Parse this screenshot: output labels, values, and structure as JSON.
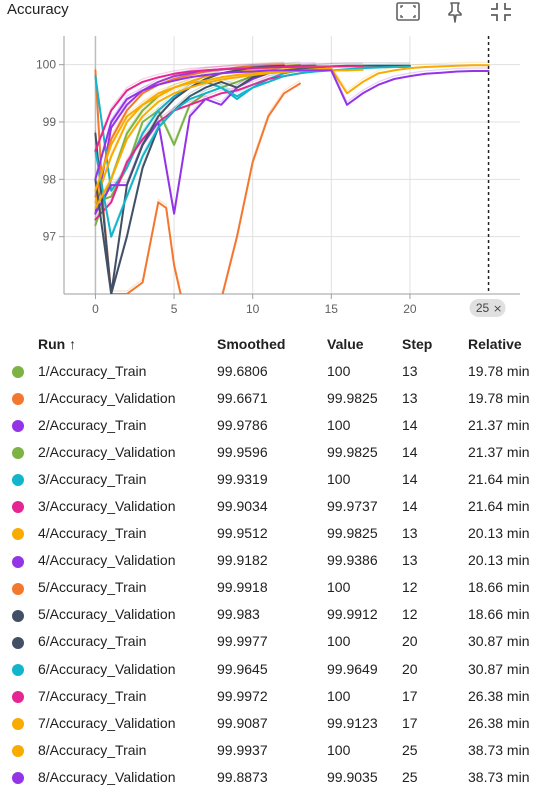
{
  "header": {
    "title": "Accuracy",
    "icons": [
      "fit-domain-icon",
      "pin-icon",
      "collapse-icon"
    ]
  },
  "chart_data": {
    "type": "line",
    "title": "Accuracy",
    "xlabel": "",
    "ylabel": "",
    "xlim": [
      -2,
      27
    ],
    "ylim": [
      96,
      100.5
    ],
    "x_ticks": [
      0,
      5,
      10,
      15,
      20
    ],
    "y_ticks": [
      97,
      98,
      99,
      100
    ],
    "x_tick_labels": [
      "0",
      "5",
      "10",
      "15",
      "20"
    ],
    "y_tick_labels": [
      "97",
      "98",
      "99",
      "100"
    ],
    "cursor_x": 25,
    "cursor_label": "25",
    "cursor_close": "×",
    "grid": true,
    "series": [
      {
        "name": "1/Accuracy_Train",
        "color": "#7cb342",
        "x": [
          0,
          1,
          2,
          3,
          4,
          5,
          6,
          7,
          8,
          9,
          10,
          11,
          12,
          13
        ],
        "y": [
          97.2,
          98.0,
          98.8,
          99.2,
          99.45,
          99.6,
          99.7,
          99.8,
          99.85,
          99.9,
          99.92,
          99.95,
          99.97,
          100.0
        ]
      },
      {
        "name": "1/Accuracy_Validation",
        "color": "#f4772e",
        "x": [
          0,
          0.5,
          1,
          2,
          3,
          4,
          4.5,
          5,
          5.5,
          7,
          8,
          9,
          10,
          11,
          12,
          13
        ],
        "y": [
          99.9,
          97.5,
          96.0,
          96.0,
          96.2,
          97.6,
          97.5,
          96.5,
          95.9,
          95.8,
          95.9,
          97.0,
          98.3,
          99.1,
          99.5,
          99.67
        ]
      },
      {
        "name": "2/Accuracy_Train",
        "color": "#9334e6",
        "x": [
          0,
          1,
          2,
          3,
          4,
          5,
          6,
          7,
          8,
          9,
          10,
          11,
          12,
          13,
          14
        ],
        "y": [
          97.4,
          98.9,
          99.3,
          99.55,
          99.7,
          99.8,
          99.85,
          99.9,
          99.92,
          99.94,
          99.95,
          99.96,
          99.97,
          99.98,
          99.98
        ]
      },
      {
        "name": "2/Accuracy_Validation",
        "color": "#7cb342",
        "x": [
          0,
          1,
          2,
          3,
          4,
          5,
          6,
          7,
          8,
          9,
          10,
          11,
          12,
          13,
          14
        ],
        "y": [
          97.6,
          97.7,
          98.2,
          99.0,
          99.2,
          98.6,
          99.3,
          99.5,
          99.6,
          99.7,
          99.8,
          99.85,
          99.9,
          99.93,
          99.96
        ]
      },
      {
        "name": "3/Accuracy_Train",
        "color": "#12b5cb",
        "x": [
          0,
          1,
          2,
          3,
          4,
          5,
          6,
          7,
          8,
          9,
          10,
          11,
          12,
          13,
          14
        ],
        "y": [
          99.8,
          97.8,
          98.2,
          98.8,
          99.2,
          99.45,
          99.6,
          99.7,
          99.6,
          99.4,
          99.6,
          99.75,
          99.85,
          99.9,
          99.93
        ]
      },
      {
        "name": "3/Accuracy_Validation",
        "color": "#e52592",
        "x": [
          0,
          1,
          2,
          3,
          4,
          5,
          6,
          7,
          8,
          9,
          10,
          11,
          12,
          13,
          14
        ],
        "y": [
          97.3,
          97.6,
          98.3,
          98.7,
          99.0,
          99.2,
          99.3,
          99.4,
          99.5,
          99.55,
          99.65,
          99.75,
          99.8,
          99.85,
          99.9
        ]
      },
      {
        "name": "4/Accuracy_Train",
        "color": "#f9ab00",
        "x": [
          0,
          1,
          2,
          3,
          4,
          5,
          6,
          7,
          8,
          9,
          10,
          11,
          12,
          13
        ],
        "y": [
          97.6,
          98.4,
          99.0,
          99.3,
          99.45,
          99.6,
          99.7,
          99.8,
          99.85,
          99.9,
          99.92,
          99.94,
          99.95,
          99.95
        ]
      },
      {
        "name": "4/Accuracy_Validation",
        "color": "#9334e6",
        "x": [
          0,
          1,
          2,
          3,
          4,
          5,
          6,
          7,
          8,
          9,
          10,
          11,
          12,
          13
        ],
        "y": [
          97.4,
          97.9,
          97.9,
          98.6,
          99.0,
          97.4,
          99.1,
          99.4,
          99.3,
          99.6,
          99.75,
          99.85,
          99.9,
          99.92
        ]
      },
      {
        "name": "5/Accuracy_Train",
        "color": "#f4772e",
        "x": [
          0,
          1,
          2,
          3,
          4,
          5,
          6,
          7,
          8,
          9,
          10,
          11,
          12
        ],
        "y": [
          97.7,
          98.7,
          99.2,
          99.5,
          99.65,
          99.75,
          99.82,
          99.88,
          99.92,
          99.95,
          99.97,
          99.98,
          99.99
        ]
      },
      {
        "name": "5/Accuracy_Validation",
        "color": "#425066",
        "x": [
          0,
          1,
          2,
          3,
          4,
          5,
          6,
          7,
          8,
          9,
          10,
          11,
          12
        ],
        "y": [
          98.8,
          96.0,
          97.9,
          98.6,
          99.1,
          99.4,
          99.6,
          99.75,
          99.85,
          99.9,
          99.95,
          99.97,
          99.98
        ]
      },
      {
        "name": "6/Accuracy_Train",
        "color": "#425066",
        "x": [
          0,
          1,
          2,
          3,
          4,
          5,
          6,
          7,
          8,
          9,
          10,
          11,
          12,
          13,
          14,
          15,
          16,
          17,
          18,
          19,
          20
        ],
        "y": [
          98.0,
          96.0,
          97.0,
          98.2,
          98.9,
          99.2,
          99.45,
          99.6,
          99.7,
          99.6,
          99.78,
          99.85,
          99.9,
          99.93,
          99.95,
          99.97,
          99.98,
          99.98,
          99.98,
          99.98,
          99.98
        ]
      },
      {
        "name": "6/Accuracy_Validation",
        "color": "#12b5cb",
        "x": [
          0,
          1,
          2,
          3,
          4,
          5,
          6,
          7,
          8,
          9,
          10,
          11,
          12,
          13,
          14,
          15,
          16,
          17,
          18,
          19,
          20
        ],
        "y": [
          98.5,
          97.0,
          97.7,
          98.4,
          98.9,
          99.2,
          99.4,
          99.5,
          99.6,
          99.45,
          99.6,
          99.7,
          99.8,
          99.85,
          99.88,
          99.9,
          99.92,
          99.94,
          99.95,
          99.96,
          99.96
        ]
      },
      {
        "name": "7/Accuracy_Train",
        "color": "#e52592",
        "x": [
          0,
          1,
          2,
          3,
          4,
          5,
          6,
          7,
          8,
          9,
          10,
          11,
          12,
          13,
          14,
          15,
          16,
          17
        ],
        "y": [
          98.5,
          99.2,
          99.55,
          99.7,
          99.78,
          99.84,
          99.88,
          99.9,
          99.92,
          99.93,
          99.94,
          99.95,
          99.96,
          99.96,
          99.97,
          99.97,
          99.97,
          99.97
        ]
      },
      {
        "name": "7/Accuracy_Validation",
        "color": "#f9ab00",
        "x": [
          0,
          1,
          2,
          3,
          4,
          5,
          6,
          7,
          8,
          9,
          10,
          11,
          12,
          13,
          14,
          15,
          16,
          17
        ],
        "y": [
          97.8,
          98.6,
          99.1,
          99.3,
          99.5,
          99.6,
          99.68,
          99.72,
          99.78,
          99.82,
          99.85,
          99.87,
          99.88,
          99.89,
          99.9,
          99.9,
          99.9,
          99.91
        ]
      },
      {
        "name": "8/Accuracy_Train",
        "color": "#f9ab00",
        "x": [
          0,
          1,
          2,
          3,
          4,
          5,
          6,
          7,
          8,
          9,
          10,
          11,
          12,
          13,
          14,
          15,
          16,
          17,
          18,
          19,
          20,
          21,
          22,
          23,
          24,
          25
        ],
        "y": [
          97.5,
          98.0,
          98.7,
          99.1,
          99.35,
          99.5,
          99.6,
          99.68,
          99.74,
          99.78,
          99.82,
          99.85,
          99.87,
          99.9,
          99.92,
          99.93,
          99.5,
          99.7,
          99.85,
          99.9,
          99.94,
          99.96,
          99.97,
          99.98,
          99.99,
          99.99
        ]
      },
      {
        "name": "8/Accuracy_Validation",
        "color": "#9334e6",
        "x": [
          0,
          1,
          2,
          3,
          4,
          5,
          6,
          7,
          8,
          9,
          10,
          11,
          12,
          13,
          14,
          15,
          16,
          17,
          18,
          19,
          20,
          21,
          22,
          23,
          24,
          25
        ],
        "y": [
          98.0,
          99.0,
          99.4,
          99.55,
          99.65,
          99.72,
          99.78,
          99.82,
          99.85,
          99.87,
          99.88,
          99.9,
          99.9,
          99.9,
          99.9,
          99.9,
          99.3,
          99.5,
          99.65,
          99.75,
          99.8,
          99.84,
          99.86,
          99.88,
          99.89,
          99.89
        ]
      }
    ]
  },
  "table": {
    "headers": {
      "run": "Run",
      "sort_arrow": "↑",
      "smoothed": "Smoothed",
      "value": "Value",
      "step": "Step",
      "relative": "Relative"
    },
    "rows": [
      {
        "color": "#7cb342",
        "run": "1/Accuracy_Train",
        "smoothed": "99.6806",
        "value": "100",
        "step": "13",
        "relative": "19.78 min"
      },
      {
        "color": "#f4772e",
        "run": "1/Accuracy_Validation",
        "smoothed": "99.6671",
        "value": "99.9825",
        "step": "13",
        "relative": "19.78 min"
      },
      {
        "color": "#9334e6",
        "run": "2/Accuracy_Train",
        "smoothed": "99.9786",
        "value": "100",
        "step": "14",
        "relative": "21.37 min"
      },
      {
        "color": "#7cb342",
        "run": "2/Accuracy_Validation",
        "smoothed": "99.9596",
        "value": "99.9825",
        "step": "14",
        "relative": "21.37 min"
      },
      {
        "color": "#12b5cb",
        "run": "3/Accuracy_Train",
        "smoothed": "99.9319",
        "value": "100",
        "step": "14",
        "relative": "21.64 min"
      },
      {
        "color": "#e52592",
        "run": "3/Accuracy_Validation",
        "smoothed": "99.9034",
        "value": "99.9737",
        "step": "14",
        "relative": "21.64 min"
      },
      {
        "color": "#f9ab00",
        "run": "4/Accuracy_Train",
        "smoothed": "99.9512",
        "value": "99.9825",
        "step": "13",
        "relative": "20.13 min"
      },
      {
        "color": "#9334e6",
        "run": "4/Accuracy_Validation",
        "smoothed": "99.9182",
        "value": "99.9386",
        "step": "13",
        "relative": "20.13 min"
      },
      {
        "color": "#f4772e",
        "run": "5/Accuracy_Train",
        "smoothed": "99.9918",
        "value": "100",
        "step": "12",
        "relative": "18.66 min"
      },
      {
        "color": "#425066",
        "run": "5/Accuracy_Validation",
        "smoothed": "99.983",
        "value": "99.9912",
        "step": "12",
        "relative": "18.66 min"
      },
      {
        "color": "#425066",
        "run": "6/Accuracy_Train",
        "smoothed": "99.9977",
        "value": "100",
        "step": "20",
        "relative": "30.87 min"
      },
      {
        "color": "#12b5cb",
        "run": "6/Accuracy_Validation",
        "smoothed": "99.9645",
        "value": "99.9649",
        "step": "20",
        "relative": "30.87 min"
      },
      {
        "color": "#e52592",
        "run": "7/Accuracy_Train",
        "smoothed": "99.9972",
        "value": "100",
        "step": "17",
        "relative": "26.38 min"
      },
      {
        "color": "#f9ab00",
        "run": "7/Accuracy_Validation",
        "smoothed": "99.9087",
        "value": "99.9123",
        "step": "17",
        "relative": "26.38 min"
      },
      {
        "color": "#f9ab00",
        "run": "8/Accuracy_Train",
        "smoothed": "99.9937",
        "value": "100",
        "step": "25",
        "relative": "38.73 min"
      },
      {
        "color": "#9334e6",
        "run": "8/Accuracy_Validation",
        "smoothed": "99.8873",
        "value": "99.9035",
        "step": "25",
        "relative": "38.73 min"
      }
    ]
  }
}
